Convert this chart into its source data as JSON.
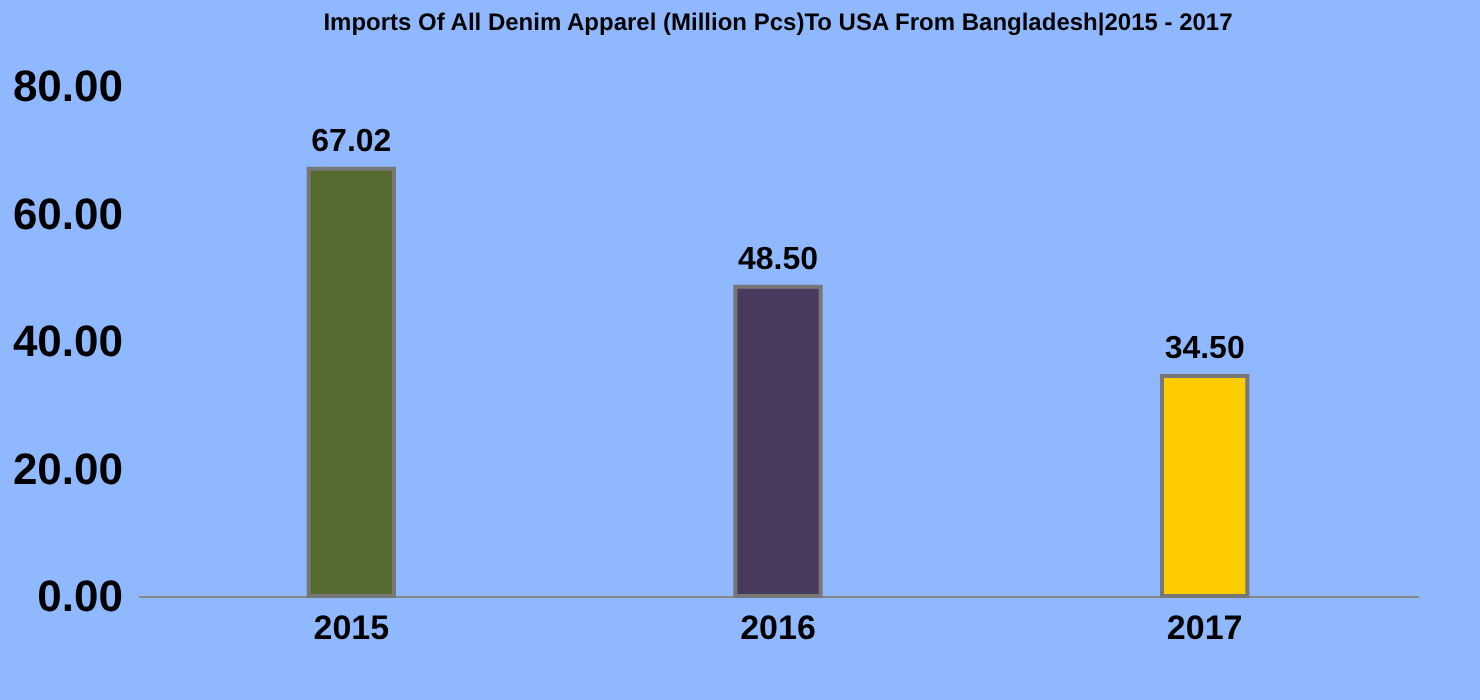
{
  "chart_data": {
    "type": "bar",
    "title": "Imports Of All Denim Apparel (Million Pcs)To USA From Bangladesh|2015 - 2017",
    "categories": [
      "2015",
      "2016",
      "2017"
    ],
    "values": [
      67.02,
      48.5,
      34.5
    ],
    "colors": [
      "#556b2f",
      "#483a5c",
      "#ffcc00"
    ],
    "value_labels": [
      "67.02",
      "48.50",
      "34.50"
    ],
    "ylim": [
      0,
      80
    ],
    "yticks": [
      {
        "value": 0,
        "label": "0.00"
      },
      {
        "value": 20,
        "label": "20.00"
      },
      {
        "value": 40,
        "label": "40.00"
      },
      {
        "value": 60,
        "label": "60.00"
      },
      {
        "value": 80,
        "label": "80.00"
      }
    ],
    "grid": false
  }
}
